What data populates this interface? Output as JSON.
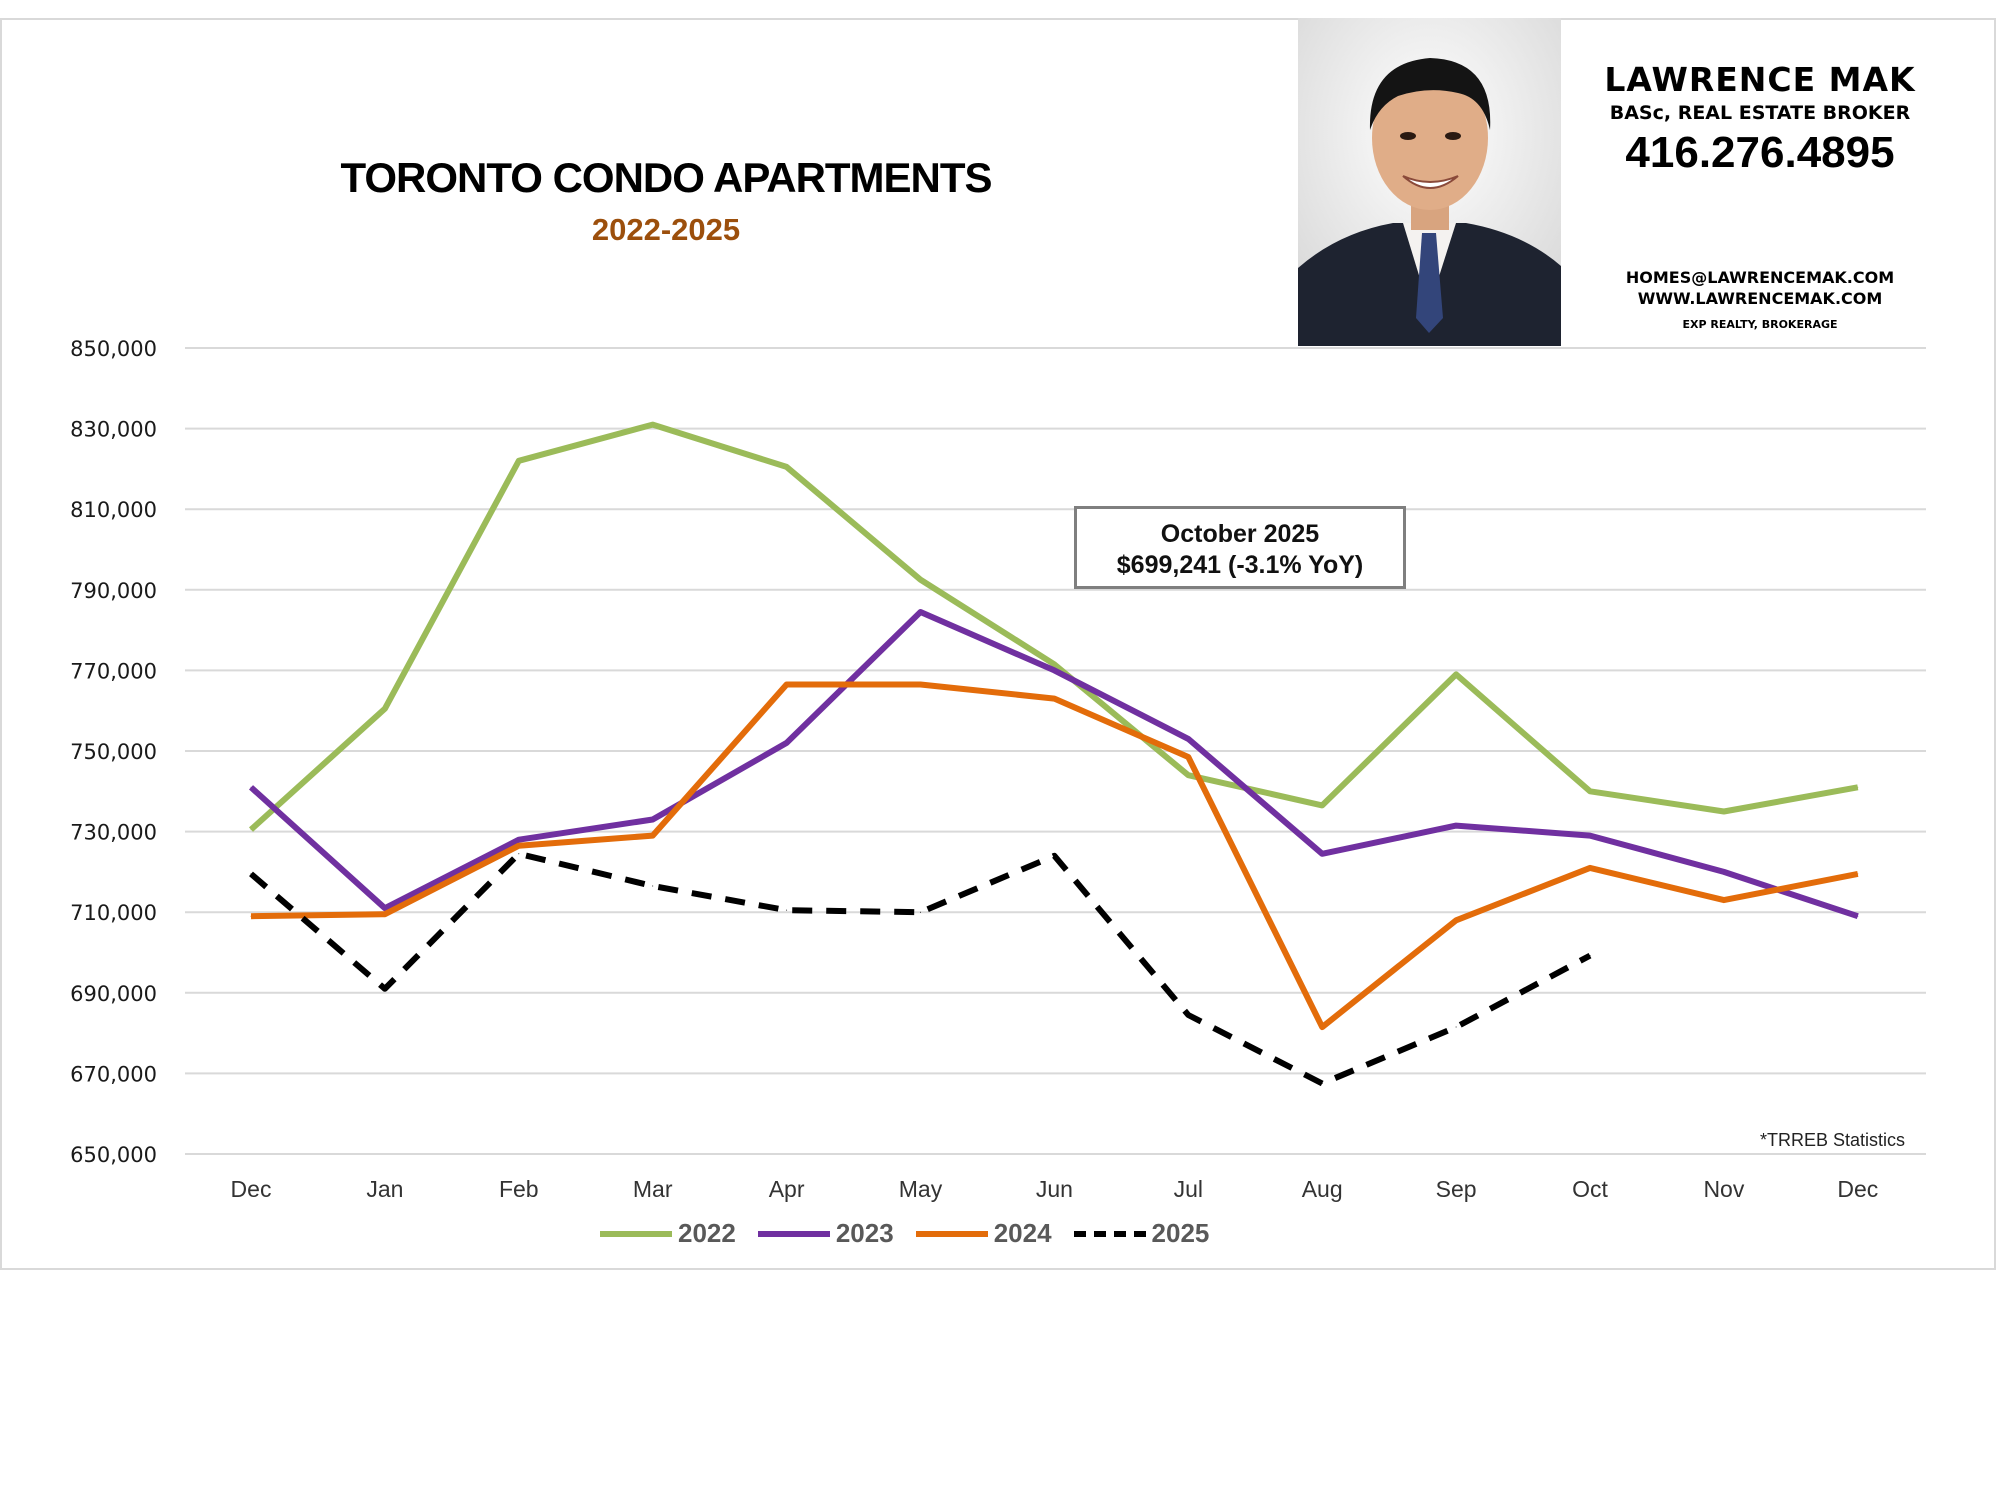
{
  "header": {
    "title": "TORONTO CONDO APARTMENTS",
    "subtitle": "2022-2025"
  },
  "contact": {
    "name": "LAWRENCE MAK",
    "credentials": "BASc, REAL ESTATE BROKER",
    "phone": "416.276.4895",
    "email": "HOMES@LAWRENCEMAK.COM",
    "website": "WWW.LAWRENCEMAK.COM",
    "brokerage": "EXP REALTY, BROKERAGE"
  },
  "annotation": {
    "line1": "October 2025",
    "line2": "$699,241 (-3.1% YoY)"
  },
  "source_note": "*TRREB Statistics",
  "colors": {
    "2022": "#9bbb59",
    "2023": "#7030a0",
    "2024": "#e36c0a",
    "2025": "#000000",
    "grid": "#d9d9d9"
  },
  "chart_data": {
    "type": "line",
    "title": "TORONTO CONDO APARTMENTS",
    "subtitle": "2022-2025",
    "xlabel": "",
    "ylabel": "",
    "categories": [
      "Dec",
      "Jan",
      "Feb",
      "Mar",
      "Apr",
      "May",
      "Jun",
      "Jul",
      "Aug",
      "Sep",
      "Oct",
      "Nov",
      "Dec"
    ],
    "ylim": [
      650000,
      850000
    ],
    "yticks": [
      650000,
      670000,
      690000,
      710000,
      730000,
      750000,
      770000,
      790000,
      810000,
      830000,
      850000
    ],
    "ytick_labels": [
      "650,000",
      "670,000",
      "690,000",
      "710,000",
      "730,000",
      "750,000",
      "770,000",
      "790,000",
      "810,000",
      "830,000",
      "850,000"
    ],
    "grid": true,
    "legend_position": "bottom",
    "series": [
      {
        "name": "2022",
        "style": "solid",
        "values": [
          730500,
          760500,
          822000,
          831000,
          820500,
          792500,
          771500,
          744000,
          736500,
          769000,
          740000,
          735000,
          741000
        ]
      },
      {
        "name": "2023",
        "style": "solid",
        "values": [
          741000,
          711000,
          728000,
          733000,
          752000,
          784500,
          770000,
          753000,
          724500,
          731500,
          729000,
          720000,
          709000
        ]
      },
      {
        "name": "2024",
        "style": "solid",
        "values": [
          709000,
          709500,
          726500,
          729000,
          766500,
          766500,
          763000,
          748500,
          681500,
          708000,
          721000,
          713000,
          719500
        ]
      },
      {
        "name": "2025",
        "style": "dashed",
        "values": [
          719500,
          691000,
          724500,
          716500,
          710500,
          710000,
          724000,
          684500,
          667500,
          681500,
          699241,
          null,
          null
        ]
      }
    ],
    "annotations": [
      "October 2025 $699,241 (-3.1% YoY)",
      "*TRREB Statistics"
    ]
  }
}
